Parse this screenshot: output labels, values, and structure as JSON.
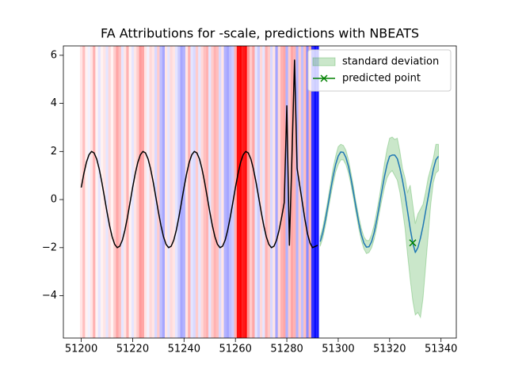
{
  "chart_data": {
    "type": "line",
    "title": "FA Attributions for -scale, predictions with NBEATS",
    "xlim": [
      51193.05,
      51345.95
    ],
    "ylim": [
      -5.76,
      6.39
    ],
    "xticks": [
      51200,
      51220,
      51240,
      51260,
      51280,
      51300,
      51320,
      51340
    ],
    "yticks": [
      {
        "value": -4,
        "label": "−4"
      },
      {
        "value": -2,
        "label": "−2"
      },
      0,
      2,
      4,
      6
    ],
    "legend": "upper right",
    "attributions": {
      "positive_color": "#ff0000",
      "negative_color": "#0000ff",
      "x": [
        51200,
        51201,
        51202,
        51203,
        51204,
        51205,
        51206,
        51207,
        51208,
        51209,
        51210,
        51211,
        51212,
        51213,
        51214,
        51215,
        51216,
        51217,
        51218,
        51219,
        51220,
        51221,
        51222,
        51223,
        51224,
        51225,
        51226,
        51227,
        51228,
        51229,
        51230,
        51231,
        51232,
        51233,
        51234,
        51235,
        51236,
        51237,
        51238,
        51239,
        51240,
        51241,
        51242,
        51243,
        51244,
        51245,
        51246,
        51247,
        51248,
        51249,
        51250,
        51251,
        51252,
        51253,
        51254,
        51255,
        51256,
        51257,
        51258,
        51259,
        51260,
        51261,
        51262,
        51263,
        51264,
        51265,
        51266,
        51267,
        51268,
        51269,
        51270,
        51271,
        51272,
        51273,
        51274,
        51275,
        51276,
        51277,
        51278,
        51279,
        51280,
        51281,
        51282,
        51283,
        51284,
        51285,
        51286,
        51287,
        51288,
        51289,
        51290,
        51291,
        51292
      ],
      "values": [
        0.1,
        0.25,
        0.05,
        -0.05,
        0.1,
        0.3,
        0.05,
        -0.1,
        0.05,
        0.1,
        -0.1,
        0.15,
        0.05,
        0.2,
        0.35,
        0.25,
        -0.1,
        0.1,
        0.3,
        0.05,
        -0.1,
        0.1,
        0.2,
        0.4,
        0.35,
        0.1,
        -0.05,
        0.15,
        0.1,
        -0.15,
        0.2,
        -0.25,
        -0.35,
        0.1,
        -0.1,
        0.15,
        0.1,
        -0.1,
        -0.2,
        -0.35,
        -0.3,
        0.1,
        0.3,
        -0.1,
        -0.15,
        0.2,
        -0.1,
        0.15,
        0.25,
        0.3,
        -0.1,
        0.2,
        0.3,
        0.25,
        -0.15,
        0.1,
        -0.3,
        -0.35,
        -0.25,
        -0.2,
        0.3,
        0.95,
        1.0,
        0.9,
        0.95,
        0.4,
        0.2,
        0.35,
        -0.1,
        -0.2,
        0.15,
        -0.1,
        0.3,
        0.2,
        -0.15,
        0.1,
        -0.35,
        0.15,
        0.3,
        0.35,
        -0.3,
        0.2,
        0.35,
        0.3,
        -0.3,
        0.2,
        -0.25,
        0.25,
        -0.45,
        0.3,
        -0.8,
        -0.95,
        -0.9
      ]
    },
    "series": [
      {
        "style": "line",
        "color": "#000000",
        "x": [
          51200,
          51201,
          51202,
          51203,
          51204,
          51205,
          51206,
          51207,
          51208,
          51209,
          51210,
          51211,
          51212,
          51213,
          51214,
          51215,
          51216,
          51217,
          51218,
          51219,
          51220,
          51221,
          51222,
          51223,
          51224,
          51225,
          51226,
          51227,
          51228,
          51229,
          51230,
          51231,
          51232,
          51233,
          51234,
          51235,
          51236,
          51237,
          51238,
          51239,
          51240,
          51241,
          51242,
          51243,
          51244,
          51245,
          51246,
          51247,
          51248,
          51249,
          51250,
          51251,
          51252,
          51253,
          51254,
          51255,
          51256,
          51257,
          51258,
          51259,
          51260,
          51261,
          51262,
          51263,
          51264,
          51265,
          51266,
          51267,
          51268,
          51269,
          51270,
          51271,
          51272,
          51273,
          51274,
          51275,
          51276,
          51277,
          51278,
          51279,
          51280,
          51281,
          51282,
          51283,
          51284,
          51285,
          51286,
          51287,
          51288,
          51289,
          51290,
          51291,
          51292
        ],
        "values": [
          0.5,
          1.07,
          1.54,
          1.86,
          2.0,
          1.94,
          1.69,
          1.27,
          0.73,
          0.12,
          -0.5,
          -1.07,
          -1.54,
          -1.86,
          -2.0,
          -1.94,
          -1.69,
          -1.27,
          -0.73,
          -0.12,
          0.5,
          1.07,
          1.54,
          1.86,
          2.0,
          1.94,
          1.69,
          1.27,
          0.73,
          0.12,
          -0.5,
          -1.07,
          -1.54,
          -1.86,
          -2.0,
          -1.94,
          -1.69,
          -1.27,
          -0.73,
          -0.12,
          0.5,
          1.07,
          1.54,
          1.86,
          2.0,
          1.94,
          1.69,
          1.27,
          0.73,
          0.12,
          -0.5,
          -1.07,
          -1.54,
          -1.86,
          -2.0,
          -1.94,
          -1.69,
          -1.27,
          -0.73,
          -0.12,
          0.5,
          1.07,
          1.54,
          1.86,
          2.0,
          1.94,
          1.69,
          1.27,
          0.73,
          0.12,
          -0.5,
          -1.07,
          -1.54,
          -1.86,
          -2.0,
          -1.94,
          -1.69,
          -1.27,
          -0.73,
          -0.12,
          3.9,
          -1.9,
          1.8,
          5.8,
          1.3,
          0.6,
          -0.1,
          -0.8,
          -1.4,
          -1.8,
          -2.0,
          -1.95,
          -1.9
        ]
      },
      {
        "style": "line",
        "color": "#1f77b4",
        "x": [
          51293,
          51294,
          51295,
          51296,
          51297,
          51298,
          51299,
          51300,
          51301,
          51302,
          51303,
          51304,
          51305,
          51306,
          51307,
          51308,
          51309,
          51310,
          51311,
          51312,
          51313,
          51314,
          51315,
          51316,
          51317,
          51318,
          51319,
          51320,
          51321,
          51322,
          51323,
          51324,
          51325,
          51326,
          51327,
          51328,
          51329,
          51330,
          51331,
          51332,
          51333,
          51334,
          51335,
          51336,
          51337,
          51338,
          51339
        ],
        "values": [
          -1.75,
          -1.37,
          -0.85,
          -0.25,
          0.37,
          0.96,
          1.46,
          1.81,
          1.98,
          1.96,
          1.75,
          1.37,
          0.85,
          0.25,
          -0.37,
          -0.96,
          -1.46,
          -1.81,
          -1.98,
          -1.96,
          -1.75,
          -1.37,
          -0.85,
          -0.25,
          0.37,
          0.96,
          1.46,
          1.8,
          1.85,
          1.85,
          1.7,
          1.3,
          0.8,
          0.2,
          -0.5,
          -1.2,
          -1.8,
          -2.2,
          -2.0,
          -1.6,
          -1.1,
          -0.5,
          0.1,
          0.7,
          1.25,
          1.65,
          1.8
        ]
      },
      {
        "style": "band",
        "name": "standard deviation",
        "color": "#2ca02c",
        "x": [
          51293,
          51294,
          51295,
          51296,
          51297,
          51298,
          51299,
          51300,
          51301,
          51302,
          51303,
          51304,
          51305,
          51306,
          51307,
          51308,
          51309,
          51310,
          51311,
          51312,
          51313,
          51314,
          51315,
          51316,
          51317,
          51318,
          51319,
          51320,
          51321,
          51322,
          51323,
          51324,
          51325,
          51326,
          51327,
          51328,
          51329,
          51330,
          51331,
          51332,
          51333,
          51334,
          51335,
          51336,
          51337,
          51338,
          51339
        ],
        "lower": [
          -1.95,
          -1.6,
          -1.1,
          -0.5,
          0.1,
          0.65,
          1.15,
          1.45,
          1.65,
          1.65,
          1.45,
          1.1,
          0.6,
          0.0,
          -0.6,
          -1.2,
          -1.7,
          -2.05,
          -2.25,
          -2.2,
          -2.0,
          -1.65,
          -1.15,
          -0.55,
          0.0,
          0.5,
          0.9,
          1.1,
          1.2,
          1.0,
          0.8,
          0.3,
          -0.4,
          -1.2,
          -2.3,
          -3.3,
          -4.2,
          -4.8,
          -4.7,
          -4.9,
          -4.1,
          -2.8,
          -1.5,
          -0.2,
          0.7,
          1.1,
          1.2
        ],
        "upper": [
          -1.55,
          -1.15,
          -0.6,
          0.0,
          0.65,
          1.3,
          1.8,
          2.2,
          2.3,
          2.25,
          2.05,
          1.65,
          1.1,
          0.5,
          -0.15,
          -0.7,
          -1.2,
          -1.55,
          -1.7,
          -1.7,
          -1.45,
          -1.05,
          -0.5,
          0.1,
          0.8,
          1.5,
          2.1,
          2.55,
          2.6,
          2.5,
          2.55,
          2.0,
          1.3,
          0.9,
          0.3,
          0.6,
          -0.2,
          -1.0,
          -0.6,
          -0.4,
          -0.2,
          0.3,
          0.9,
          1.3,
          1.7,
          2.3,
          2.3
        ]
      },
      {
        "style": "marker",
        "name": "predicted point",
        "color": "#008000",
        "x": [
          51329
        ],
        "values": [
          -1.8
        ]
      }
    ]
  }
}
